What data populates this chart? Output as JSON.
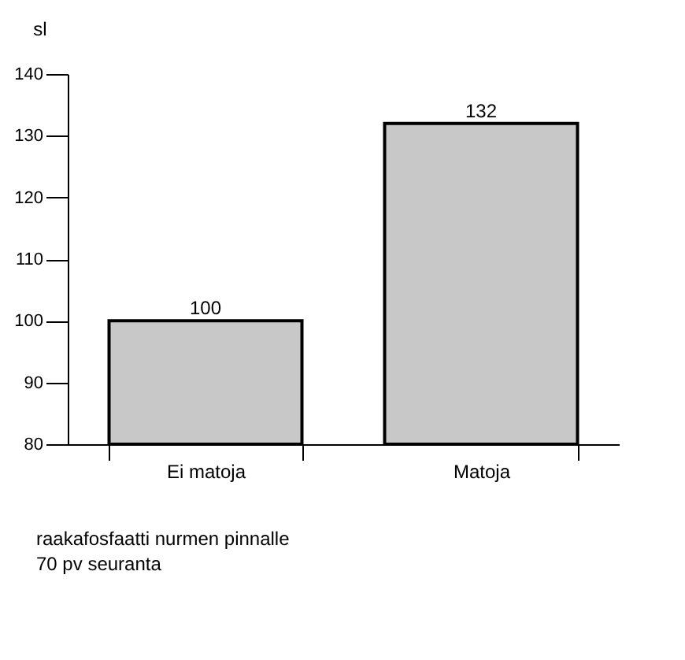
{
  "chart_data": {
    "type": "bar",
    "ylabel": "sl",
    "categories": [
      "Ei matoja",
      "Matoja"
    ],
    "values": [
      100,
      132
    ],
    "color": "#c8c8c8",
    "ylim": [
      80,
      140
    ],
    "yticks": [
      80,
      90,
      100,
      110,
      120,
      130,
      140
    ],
    "data_labels": true,
    "grid": false,
    "annotations": [
      "raakafosfaatti nurmen pinnalle",
      "70 pv seuranta"
    ]
  }
}
